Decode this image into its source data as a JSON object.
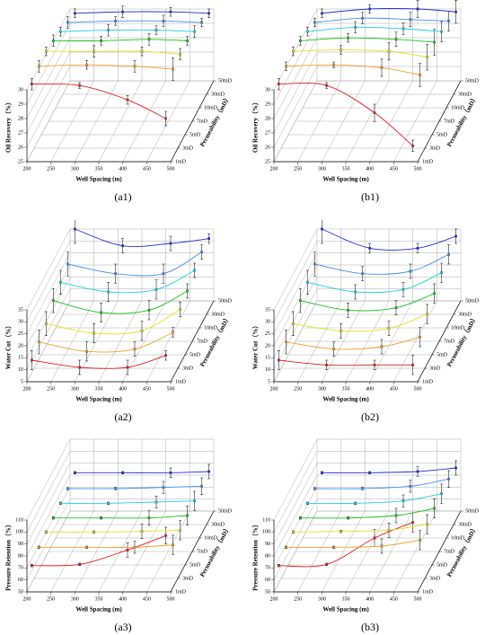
{
  "chart_data": [
    {
      "type": "line3d",
      "panel": "(a1)",
      "xlabel": "Well Spacing (m)",
      "ylabel": "Oil Recovery（%）",
      "zlabel": "Permeability（mD）",
      "x": [
        210,
        310,
        410,
        490
      ],
      "xlim": [
        200,
        500
      ],
      "xticks": [
        200,
        250,
        300,
        350,
        400,
        450,
        500
      ],
      "ylim": [
        25,
        30
      ],
      "yticks": [
        25,
        26,
        27,
        28,
        29,
        30
      ],
      "series": [
        {
          "name": "1mD",
          "color": "#e02020",
          "values": [
            30.4,
            30.3,
            29.3,
            28.0
          ],
          "errors": [
            0.4,
            0.2,
            0.3,
            0.5
          ]
        },
        {
          "name": "3mD",
          "color": "#f0a030",
          "values": [
            30.7,
            30.8,
            30.7,
            30.5
          ],
          "errors": [
            0.4,
            0.3,
            0.4,
            0.8
          ]
        },
        {
          "name": "5mD",
          "color": "#e8e020",
          "values": [
            30.8,
            30.8,
            30.8,
            30.6
          ],
          "errors": [
            0.3,
            0.4,
            0.3,
            0.4
          ]
        },
        {
          "name": "7mD",
          "color": "#20c020",
          "values": [
            30.6,
            30.6,
            30.7,
            30.6
          ],
          "errors": [
            0.4,
            0.3,
            0.4,
            0.3
          ]
        },
        {
          "name": "10mD",
          "color": "#20d0e0",
          "values": [
            30.3,
            30.4,
            30.4,
            30.3
          ],
          "errors": [
            0.3,
            0.4,
            0.3,
            0.4
          ]
        },
        {
          "name": "30mD",
          "color": "#4090f0",
          "values": [
            30.0,
            30.1,
            30.1,
            30.0
          ],
          "errors": [
            0.4,
            0.3,
            0.4,
            0.3
          ]
        },
        {
          "name": "50mD",
          "color": "#2030d0",
          "values": [
            29.7,
            29.8,
            29.8,
            29.7
          ],
          "errors": [
            0.3,
            0.4,
            0.3,
            0.3
          ]
        }
      ]
    },
    {
      "type": "line3d",
      "panel": "(b1)",
      "xlabel": "Well Spacing (m)",
      "ylabel": "Oil Recovery（%）",
      "zlabel": "Permeability（mD）",
      "x": [
        210,
        310,
        410,
        490
      ],
      "xlim": [
        200,
        500
      ],
      "xticks": [
        200,
        250,
        300,
        350,
        400,
        450,
        500
      ],
      "ylim": [
        25,
        30
      ],
      "yticks": [
        25,
        26,
        27,
        28,
        29,
        30
      ],
      "series": [
        {
          "name": "1mD",
          "color": "#e02020",
          "values": [
            30.4,
            30.3,
            28.4,
            26.1
          ],
          "errors": [
            0.4,
            0.2,
            0.6,
            0.4
          ]
        },
        {
          "name": "3mD",
          "color": "#f0a030",
          "values": [
            30.7,
            30.8,
            30.6,
            30.1
          ],
          "errors": [
            0.3,
            0.2,
            0.6,
            0.8
          ]
        },
        {
          "name": "5mD",
          "color": "#e8e020",
          "values": [
            30.8,
            30.9,
            30.8,
            30.4
          ],
          "errors": [
            0.3,
            0.3,
            0.6,
            0.9
          ]
        },
        {
          "name": "7mD",
          "color": "#20c020",
          "values": [
            30.6,
            30.8,
            30.7,
            30.5
          ],
          "errors": [
            0.3,
            0.3,
            0.5,
            0.9
          ]
        },
        {
          "name": "10mD",
          "color": "#20d0e0",
          "values": [
            30.3,
            30.6,
            30.5,
            30.3
          ],
          "errors": [
            0.3,
            0.4,
            0.4,
            0.7
          ]
        },
        {
          "name": "30mD",
          "color": "#4090f0",
          "values": [
            30.0,
            30.3,
            30.2,
            30.1
          ],
          "errors": [
            0.3,
            0.4,
            0.5,
            0.7
          ]
        },
        {
          "name": "50mD",
          "color": "#2030d0",
          "values": [
            29.7,
            30.0,
            30.0,
            29.8
          ],
          "errors": [
            0.3,
            0.3,
            0.6,
            0.8
          ]
        }
      ]
    },
    {
      "type": "line3d",
      "panel": "(a2)",
      "xlabel": "Well Spacing (m)",
      "ylabel": "Water Cut（%）",
      "zlabel": "Permeability（mD）",
      "x": [
        210,
        310,
        410,
        490
      ],
      "xlim": [
        200,
        500
      ],
      "xticks": [
        200,
        250,
        300,
        350,
        400,
        450,
        500
      ],
      "ylim": [
        5,
        35
      ],
      "yticks": [
        5,
        10,
        15,
        20,
        25,
        30,
        35
      ],
      "series": [
        {
          "name": "1mD",
          "color": "#e02020",
          "values": [
            14,
            11,
            11,
            16
          ],
          "errors": [
            4,
            3,
            3,
            2
          ]
        },
        {
          "name": "3mD",
          "color": "#f0a030",
          "values": [
            16,
            12,
            13,
            20
          ],
          "errors": [
            5,
            4,
            3,
            2
          ]
        },
        {
          "name": "5mD",
          "color": "#e8e020",
          "values": [
            18,
            14,
            15,
            24
          ],
          "errors": [
            5,
            4,
            4,
            3
          ]
        },
        {
          "name": "7mD",
          "color": "#20c020",
          "values": [
            22,
            17,
            18,
            26
          ],
          "errors": [
            5,
            4,
            4,
            3
          ]
        },
        {
          "name": "10mD",
          "color": "#20d0e0",
          "values": [
            24,
            20,
            21,
            29
          ],
          "errors": [
            5,
            4,
            4,
            3
          ]
        },
        {
          "name": "30mD",
          "color": "#4090f0",
          "values": [
            26,
            22,
            22,
            31
          ],
          "errors": [
            5,
            4,
            4,
            3
          ]
        },
        {
          "name": "50mD",
          "color": "#2030d0",
          "values": [
            35,
            28,
            29,
            31
          ],
          "errors": [
            6,
            3,
            3,
            2
          ]
        }
      ]
    },
    {
      "type": "line3d",
      "panel": "(b2)",
      "xlabel": "Well Spacing (m)",
      "ylabel": "Water Cut（%）",
      "zlabel": "Permeability（mD）",
      "x": [
        210,
        310,
        410,
        490
      ],
      "xlim": [
        200,
        500
      ],
      "xticks": [
        200,
        250,
        300,
        350,
        400,
        450,
        500
      ],
      "ylim": [
        5,
        35
      ],
      "yticks": [
        5,
        10,
        15,
        20,
        25,
        30,
        35
      ],
      "series": [
        {
          "name": "1mD",
          "color": "#e02020",
          "values": [
            14,
            12,
            12,
            12
          ],
          "errors": [
            4,
            2,
            2,
            4
          ]
        },
        {
          "name": "3mD",
          "color": "#f0a030",
          "values": [
            16,
            13,
            14,
            18
          ],
          "errors": [
            5,
            3,
            3,
            4
          ]
        },
        {
          "name": "5mD",
          "color": "#e8e020",
          "values": [
            18,
            15,
            16,
            22
          ],
          "errors": [
            5,
            3,
            3,
            4
          ]
        },
        {
          "name": "7mD",
          "color": "#20c020",
          "values": [
            22,
            18,
            19,
            25
          ],
          "errors": [
            5,
            3,
            3,
            4
          ]
        },
        {
          "name": "10mD",
          "color": "#20d0e0",
          "values": [
            24,
            20,
            21,
            28
          ],
          "errors": [
            5,
            3,
            3,
            4
          ]
        },
        {
          "name": "30mD",
          "color": "#4090f0",
          "values": [
            26,
            22,
            23,
            30
          ],
          "errors": [
            5,
            3,
            3,
            4
          ]
        },
        {
          "name": "50mD",
          "color": "#2030d0",
          "values": [
            35,
            27,
            27,
            32
          ],
          "errors": [
            6,
            2,
            2,
            3
          ]
        }
      ]
    },
    {
      "type": "line3d",
      "panel": "(a3)",
      "xlabel": "Well Spacing (m)",
      "ylabel": "Pressure Retention（%）",
      "zlabel": "Permeability（mD）",
      "x": [
        210,
        310,
        410,
        490
      ],
      "xlim": [
        200,
        500
      ],
      "xticks": [
        200,
        250,
        300,
        350,
        400,
        450,
        500
      ],
      "ylim": [
        50,
        110
      ],
      "yticks": [
        50,
        60,
        70,
        80,
        90,
        100,
        110
      ],
      "series": [
        {
          "name": "1mD",
          "color": "#e02020",
          "values": [
            72,
            73,
            85,
            97
          ],
          "errors": [
            1,
            1,
            6,
            7
          ]
        },
        {
          "name": "3mD",
          "color": "#f0a030",
          "values": [
            76,
            76,
            76,
            78
          ],
          "errors": [
            1,
            1,
            5,
            8
          ]
        },
        {
          "name": "5mD",
          "color": "#e8e020",
          "values": [
            77.5,
            77.5,
            78,
            79
          ],
          "errors": [
            1,
            1,
            6,
            8
          ]
        },
        {
          "name": "7mD",
          "color": "#20c020",
          "values": [
            78,
            78,
            78,
            80
          ],
          "errors": [
            1,
            1,
            6,
            8
          ]
        },
        {
          "name": "10mD",
          "color": "#20d0e0",
          "values": [
            79,
            79,
            80,
            81
          ],
          "errors": [
            1,
            1,
            5,
            8
          ]
        },
        {
          "name": "30mD",
          "color": "#4090f0",
          "values": [
            80,
            80,
            81,
            82
          ],
          "errors": [
            1,
            1,
            5,
            7
          ]
        },
        {
          "name": "50mD",
          "color": "#2030d0",
          "values": [
            82,
            82,
            82,
            83
          ],
          "errors": [
            1,
            1,
            4,
            6
          ]
        }
      ]
    },
    {
      "type": "line3d",
      "panel": "(b3)",
      "xlabel": "Well Spacing (m)",
      "ylabel": "Pressure Retention（%）",
      "zlabel": "Permeability（mD）",
      "x": [
        210,
        310,
        410,
        490
      ],
      "xlim": [
        200,
        500
      ],
      "xticks": [
        200,
        250,
        300,
        350,
        400,
        450,
        500
      ],
      "ylim": [
        50,
        110
      ],
      "yticks": [
        50,
        60,
        70,
        80,
        90,
        100,
        110
      ],
      "series": [
        {
          "name": "1mD",
          "color": "#e02020",
          "values": [
            72,
            73,
            95,
            108
          ],
          "errors": [
            1,
            1,
            7,
            8
          ]
        },
        {
          "name": "3mD",
          "color": "#f0a030",
          "values": [
            76,
            76,
            77,
            82
          ],
          "errors": [
            1,
            1,
            6,
            8
          ]
        },
        {
          "name": "5mD",
          "color": "#e8e020",
          "values": [
            77.5,
            78,
            79,
            84
          ],
          "errors": [
            1,
            1,
            6,
            8
          ]
        },
        {
          "name": "7mD",
          "color": "#20c020",
          "values": [
            78,
            78,
            80,
            86
          ],
          "errors": [
            1,
            1,
            6,
            8
          ]
        },
        {
          "name": "10mD",
          "color": "#20d0e0",
          "values": [
            79,
            79,
            81,
            87
          ],
          "errors": [
            1,
            1,
            5,
            8
          ]
        },
        {
          "name": "30mD",
          "color": "#4090f0",
          "values": [
            80,
            80,
            82,
            88
          ],
          "errors": [
            1,
            1,
            5,
            7
          ]
        },
        {
          "name": "50mD",
          "color": "#2030d0",
          "values": [
            82,
            82,
            83,
            86
          ],
          "errors": [
            1,
            1,
            4,
            6
          ]
        }
      ]
    }
  ]
}
